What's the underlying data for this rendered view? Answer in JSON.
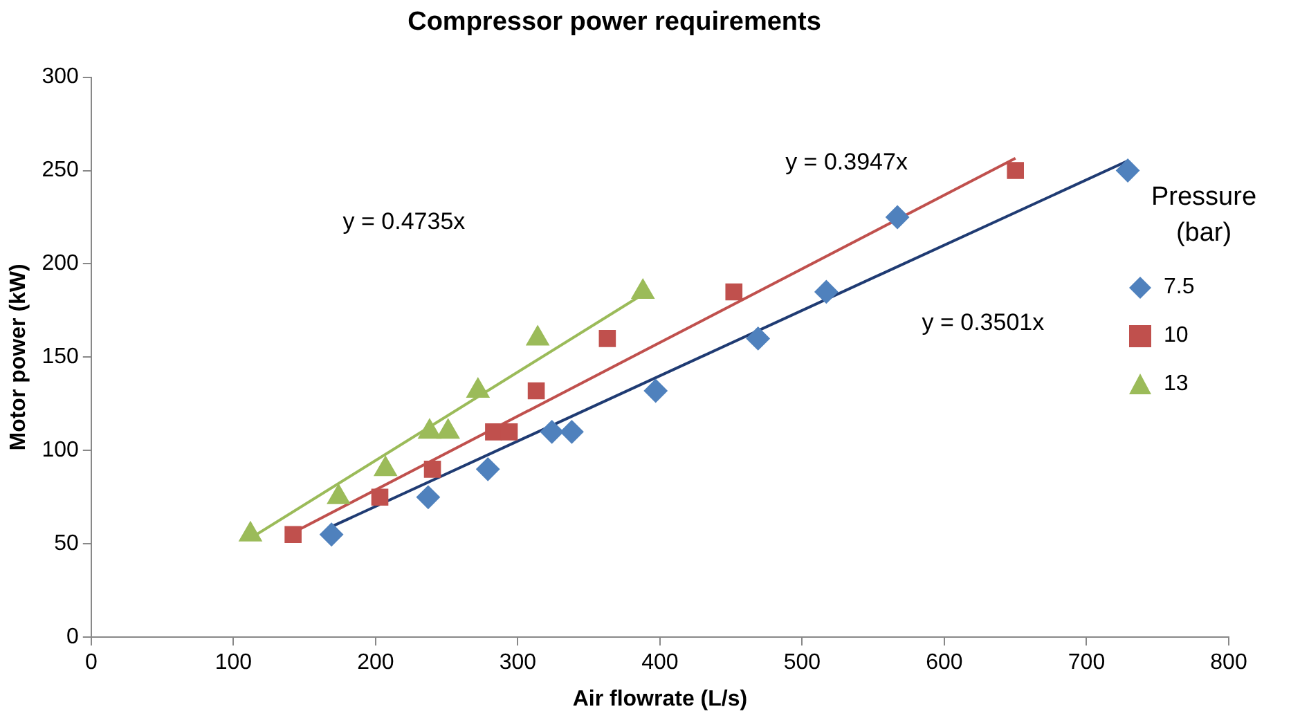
{
  "chart_data": {
    "type": "scatter",
    "title": "Compressor power requirements",
    "xlabel": "Air flowrate (L/s)",
    "ylabel": "Motor power (kW)",
    "legend_title": "Pressure (bar)",
    "xlim": [
      0,
      800
    ],
    "xticks": [
      0,
      100,
      200,
      300,
      400,
      500,
      600,
      700,
      800
    ],
    "ylim": [
      0,
      300
    ],
    "yticks": [
      0,
      50,
      100,
      150,
      200,
      250,
      300
    ],
    "grid": false,
    "legend": "right",
    "series": [
      {
        "name": "7.5",
        "color": "#4f81bd",
        "marker": "diamond",
        "x": [
          169,
          237,
          279,
          324,
          338,
          397,
          469,
          517,
          567,
          729
        ],
        "values": [
          55,
          75,
          90,
          110,
          110,
          132,
          160,
          185,
          225,
          250
        ]
      },
      {
        "name": "10",
        "color": "#c0504d",
        "marker": "square",
        "x": [
          142,
          203,
          240,
          283,
          294,
          313,
          363,
          452,
          650
        ],
        "values": [
          55,
          75,
          90,
          110,
          110,
          132,
          160,
          185,
          250
        ]
      },
      {
        "name": "13",
        "color": "#9bbb59",
        "marker": "triangle",
        "x": [
          112,
          174,
          207,
          238,
          251,
          272,
          314,
          388
        ],
        "values": [
          55,
          75,
          90,
          110,
          110,
          132,
          160,
          185
        ]
      },
      {
        "type": "line",
        "color": "#1f3b73",
        "x": [
          169,
          729
        ],
        "values": [
          59.2,
          255.2
        ]
      },
      {
        "type": "line",
        "color": "#c0504d",
        "x": [
          142,
          650
        ],
        "values": [
          56,
          256.6
        ]
      },
      {
        "type": "line",
        "color": "#9bbb59",
        "x": [
          112,
          388
        ],
        "values": [
          53,
          183.7
        ]
      }
    ],
    "annotations": [
      "y = 0.3947x",
      "y = 0.3501x",
      "y = 0.4735x"
    ]
  }
}
